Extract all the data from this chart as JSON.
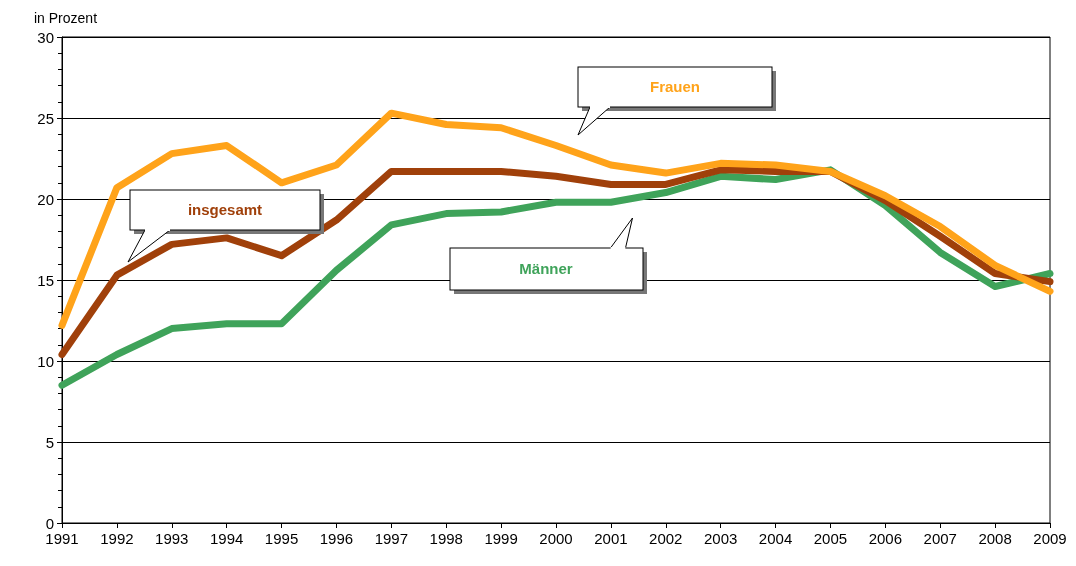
{
  "chart_data": {
    "type": "line",
    "ylabel": "in Prozent",
    "categories": [
      "1991",
      "1992",
      "1993",
      "1994",
      "1995",
      "1996",
      "1997",
      "1998",
      "1999",
      "2000",
      "2001",
      "2002",
      "2003",
      "2004",
      "2005",
      "2006",
      "2007",
      "2008",
      "2009"
    ],
    "series": [
      {
        "name": "Frauen",
        "color": "#ffa31a",
        "values": [
          12.2,
          20.7,
          22.8,
          23.3,
          21.0,
          22.1,
          25.3,
          24.6,
          24.4,
          23.3,
          22.1,
          21.6,
          22.2,
          22.1,
          21.7,
          20.2,
          18.3,
          15.9,
          14.3
        ]
      },
      {
        "name": "insgesamt",
        "color": "#a0400a",
        "values": [
          10.4,
          15.3,
          17.2,
          17.6,
          16.5,
          18.7,
          21.7,
          21.7,
          21.7,
          21.4,
          20.9,
          20.9,
          21.8,
          21.7,
          21.7,
          19.9,
          17.7,
          15.4,
          14.9
        ]
      },
      {
        "name": "Männer",
        "color": "#3fa35a",
        "values": [
          8.5,
          10.4,
          12.0,
          12.3,
          12.3,
          15.6,
          18.4,
          19.1,
          19.2,
          19.8,
          19.8,
          20.4,
          21.4,
          21.2,
          21.8,
          19.6,
          16.7,
          14.6,
          15.4
        ]
      }
    ],
    "ylim": [
      0,
      30
    ],
    "yticks": [
      0,
      5,
      10,
      15,
      20,
      25,
      30
    ],
    "grid": "y",
    "legend": false,
    "marker": "none",
    "line_style": "solid"
  }
}
